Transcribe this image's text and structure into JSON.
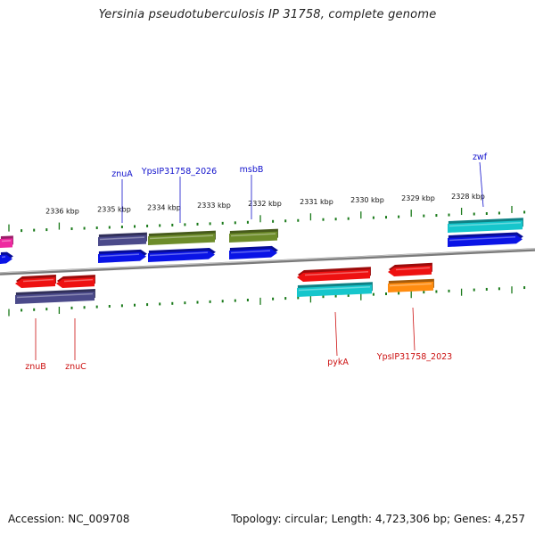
{
  "title": "Yersinia pseudotuberculosis IP 31758, complete genome",
  "footer": {
    "accession": "Accession: NC_009708",
    "summary": "Topology: circular; Length: 4,723,306 bp; Genes: 4,257"
  },
  "colors": {
    "backbone": "#7a7a7a",
    "tick": "#1a7a1a",
    "label_top": "#1010cc",
    "label_bottom": "#cc1010",
    "blue": "#0a14e6",
    "navy": "#4b4a8a",
    "olive": "#6d8c2a",
    "red": "#ee1111",
    "cyan": "#16c6cc",
    "orange": "#ff8c10",
    "magenta": "#ee2aa0"
  },
  "scale_labels": [
    "2336 kbp",
    "2335 kbp",
    "2334 kbp",
    "2333 kbp",
    "2332 kbp",
    "2331 kbp",
    "2330 kbp",
    "2329 kbp",
    "2328 kbp"
  ],
  "gene_labels": {
    "top": [
      "znuA",
      "YpsIP31758_2026",
      "msbB",
      "zwf"
    ],
    "bottom": [
      "znuB",
      "znuC",
      "pykA",
      "YpsIP31758_2023"
    ]
  }
}
